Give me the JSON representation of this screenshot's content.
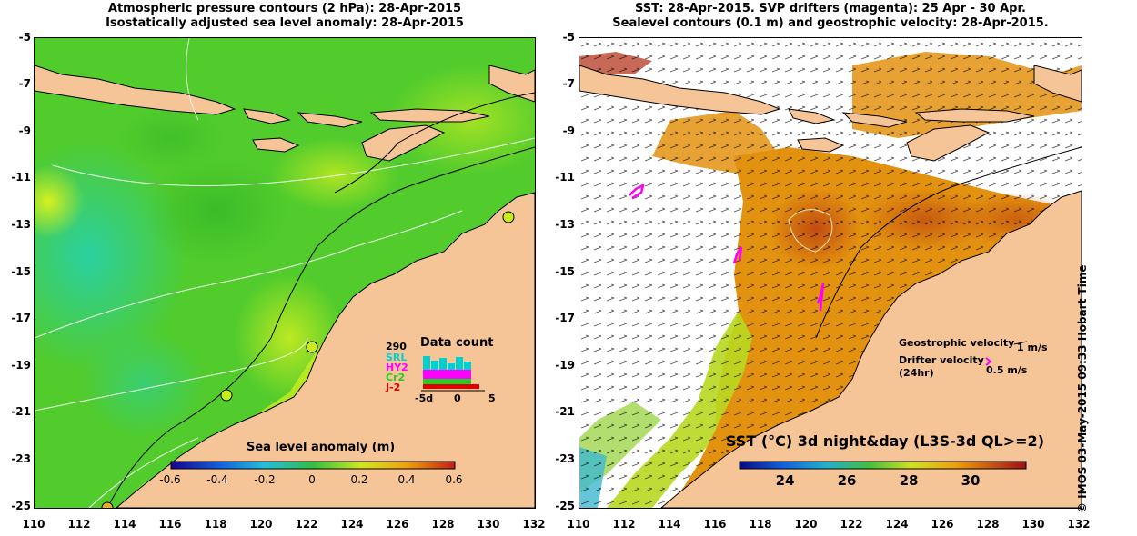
{
  "left_panel": {
    "title_line1": "Atmospheric pressure contours (2 hPa): 28-Apr-2015",
    "title_line2": "Isostatically adjusted sea level anomaly: 28-Apr-2015",
    "colorbar": {
      "label": "Sea level anomaly (m)",
      "ticks": [
        "-0.6",
        "-0.4",
        "-0.2",
        "0",
        "0.2",
        "0.4",
        "0.6"
      ]
    },
    "data_count": {
      "title": "Data count",
      "max_label": "290",
      "satellites": [
        {
          "name": "SRL",
          "color": "#00d0d0"
        },
        {
          "name": "HY2",
          "color": "#ff00ff"
        },
        {
          "name": "Cr2",
          "color": "#20d020"
        },
        {
          "name": "J-2",
          "color": "#e00000"
        }
      ],
      "x_ticks": [
        "-5d",
        "0",
        "5"
      ]
    }
  },
  "right_panel": {
    "title_line1": "SST: 28-Apr-2015. SVP drifters (magenta): 25 Apr - 30 Apr.",
    "title_line2": "Sealevel contours (0.1 m) and geostrophic velocity: 28-Apr-2015.",
    "legend": {
      "geo_label": "Geostrophic velocity",
      "geo_scale": "1 m/s",
      "drifter_label": "Drifter velocity",
      "drifter_sub": "(24hr)",
      "drifter_scale": "0.5 m/s"
    },
    "colorbar": {
      "label": "SST (°C) 3d night&day (L3S-3d QL>=2)",
      "ticks": [
        "24",
        "26",
        "28",
        "30"
      ]
    }
  },
  "axes": {
    "y_ticks": [
      "-5",
      "-7",
      "-9",
      "-11",
      "-13",
      "-15",
      "-17",
      "-19",
      "-21",
      "-23",
      "-25"
    ],
    "x_ticks": [
      "110",
      "112",
      "114",
      "116",
      "118",
      "120",
      "122",
      "124",
      "126",
      "128",
      "130",
      "132"
    ]
  },
  "copyright": "© IMOS 03-May-2015 09:33 Hobart Time",
  "colors": {
    "land": "#f5c497",
    "sla_green": "#50d020",
    "sla_yellow": "#c8ec20",
    "sla_cyan": "#30d090",
    "sst_orange": "#e08a10",
    "sst_brown": "#c05a10",
    "drifter": "#ff00ff"
  }
}
